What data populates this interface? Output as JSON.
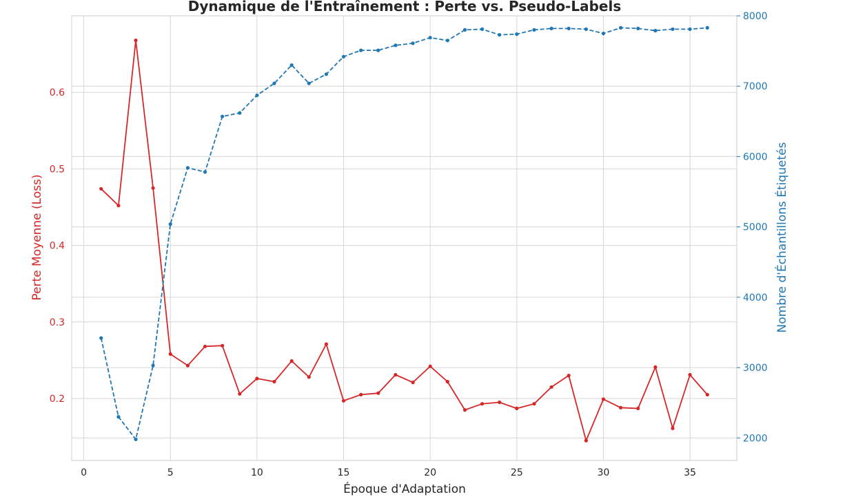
{
  "chart_data": {
    "type": "line",
    "title": "Dynamique de l'Entraînement : Perte vs. Pseudo-Labels",
    "xlabel": "Époque d'Adaptation",
    "ylabel_left": "Perte Moyenne (Loss)",
    "ylabel_right": "Nombre d'Échantillons Étiquetés",
    "xlim": [
      -0.7,
      37.7
    ],
    "ylim_left": [
      0.119,
      0.7
    ],
    "ylim_right": [
      1680,
      8000
    ],
    "x_ticks": [
      0,
      5,
      10,
      15,
      20,
      25,
      30,
      35
    ],
    "y_ticks_left": [
      0.2,
      0.3,
      0.4,
      0.5,
      0.6
    ],
    "y_ticks_right": [
      2000,
      3000,
      4000,
      5000,
      6000,
      7000,
      8000
    ],
    "grid": true,
    "colors": {
      "loss": "#d62728",
      "labels": "#1f77b4",
      "grid": "#d6d6d6",
      "frame": "#cccccc",
      "text": "#262626"
    },
    "x": [
      1,
      2,
      3,
      4,
      5,
      6,
      7,
      8,
      9,
      10,
      11,
      12,
      13,
      14,
      15,
      16,
      17,
      18,
      19,
      20,
      21,
      22,
      23,
      24,
      25,
      26,
      27,
      28,
      29,
      30,
      31,
      32,
      33,
      34,
      35,
      36
    ],
    "series": [
      {
        "key": "loss",
        "axis": "left",
        "style": "solid",
        "values": [
          0.474,
          0.452,
          0.668,
          0.475,
          0.258,
          0.243,
          0.268,
          0.269,
          0.206,
          0.226,
          0.222,
          0.249,
          0.228,
          0.271,
          0.197,
          0.205,
          0.207,
          0.231,
          0.221,
          0.242,
          0.222,
          0.185,
          0.193,
          0.195,
          0.187,
          0.193,
          0.215,
          0.23,
          0.145,
          0.199,
          0.188,
          0.187,
          0.241,
          0.161,
          0.231,
          0.205
        ]
      },
      {
        "key": "labels",
        "axis": "right",
        "style": "dashed",
        "values": [
          3420,
          2300,
          1980,
          3030,
          5040,
          5840,
          5780,
          6570,
          6620,
          6870,
          7040,
          7300,
          7040,
          7170,
          7420,
          7510,
          7510,
          7580,
          7610,
          7690,
          7650,
          7800,
          7810,
          7730,
          7740,
          7800,
          7820,
          7820,
          7810,
          7750,
          7830,
          7820,
          7790,
          7810,
          7810,
          7830
        ]
      }
    ]
  }
}
